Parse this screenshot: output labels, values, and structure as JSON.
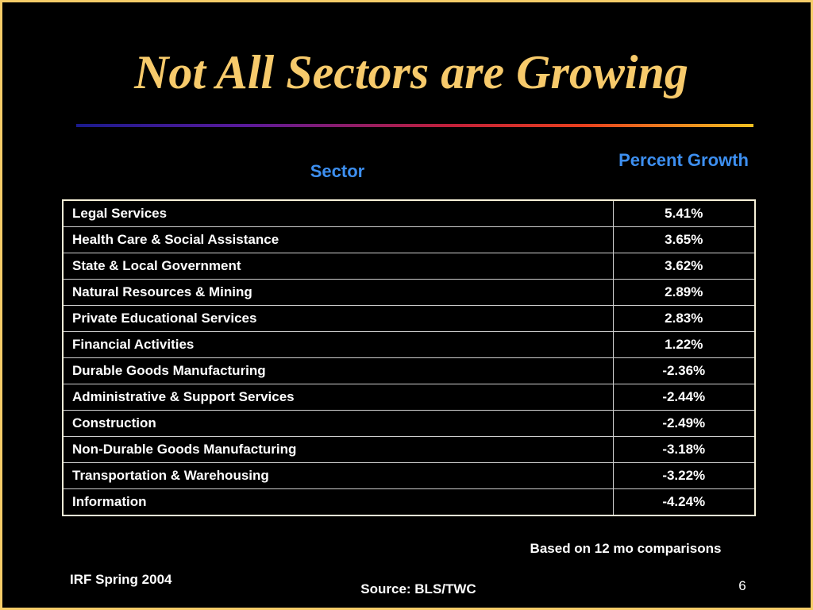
{
  "slide": {
    "title": "Not All Sectors are Growing",
    "note": "Based on 12 mo comparisons",
    "footer_left": "IRF Spring 2004",
    "source": "Source: BLS/TWC",
    "page_number": "6",
    "colors": {
      "background": "#000000",
      "title": "#f7ca6b",
      "header_text": "#3d8ff0",
      "body_text": "#ffffff",
      "frame_border": "#f5cc68"
    }
  },
  "table": {
    "headers": {
      "sector": "Sector",
      "growth": "Percent Growth"
    },
    "rows": [
      {
        "sector": "Legal Services",
        "growth": "5.41%"
      },
      {
        "sector": "Health Care & Social Assistance",
        "growth": "3.65%"
      },
      {
        "sector": "State & Local Government",
        "growth": "3.62%"
      },
      {
        "sector": "Natural Resources & Mining",
        "growth": "2.89%"
      },
      {
        "sector": "Private Educational Services",
        "growth": "2.83%"
      },
      {
        "sector": "Financial Activities",
        "growth": "1.22%"
      },
      {
        "sector": "Durable Goods Manufacturing",
        "growth": "-2.36%"
      },
      {
        "sector": "Administrative & Support Services",
        "growth": "-2.44%"
      },
      {
        "sector": "Construction",
        "growth": "-2.49%"
      },
      {
        "sector": "Non-Durable Goods Manufacturing",
        "growth": "-3.18%"
      },
      {
        "sector": "Transportation & Warehousing",
        "growth": "-3.22%"
      },
      {
        "sector": "Information",
        "growth": "-4.24%"
      }
    ]
  }
}
